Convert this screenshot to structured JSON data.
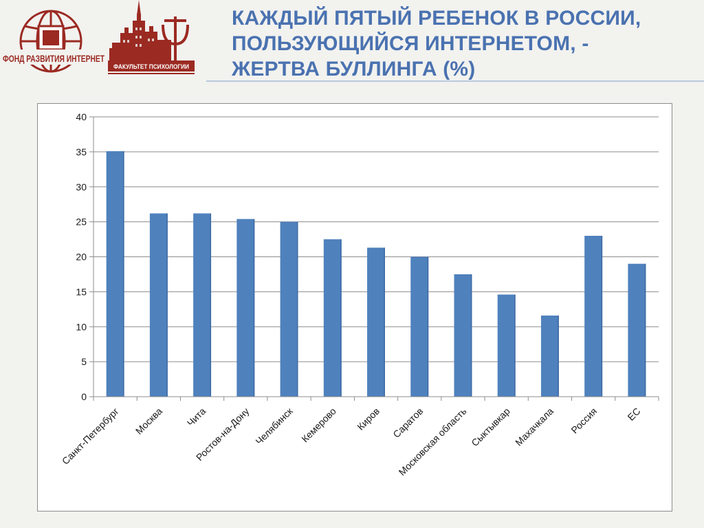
{
  "header": {
    "title_lines": [
      "КАЖДЫЙ ПЯТЫЙ РЕБЕНОК В РОССИИ,",
      "ПОЛЬЗУЮЩИЙСЯ ИНТЕРНЕТОМ, -",
      "ЖЕРТВА БУЛЛИНГА (%)"
    ],
    "logo_fund_text": "ФОНД РАЗВИТИЯ ИНТЕРНЕТ",
    "logo_psy_text": "ФАКУЛЬТЕТ ПСИХОЛОГИИ"
  },
  "colors": {
    "title": "#4a72b0",
    "bar": "#4f81bd",
    "logo": "#9b2a22",
    "grid": "#8c8c8c"
  },
  "chart_data": {
    "type": "bar",
    "title": "",
    "xlabel": "",
    "ylabel": "",
    "ylim": [
      0,
      40
    ],
    "yticks": [
      0,
      5,
      10,
      15,
      20,
      25,
      30,
      35,
      40
    ],
    "grid": true,
    "legend": "none",
    "categories": [
      "Санкт-Петербург",
      "Москва",
      "Чита",
      "Ростов-на-Дону",
      "Челябинск",
      "Кемерово",
      "Киров",
      "Саратов",
      "Московская область",
      "Сыктывкар",
      "Махачкала",
      "Россия",
      "ЕС"
    ],
    "values": [
      35.1,
      26.2,
      26.2,
      25.4,
      25.0,
      22.5,
      21.3,
      20.0,
      17.5,
      14.6,
      11.6,
      23.0,
      19.0
    ]
  }
}
